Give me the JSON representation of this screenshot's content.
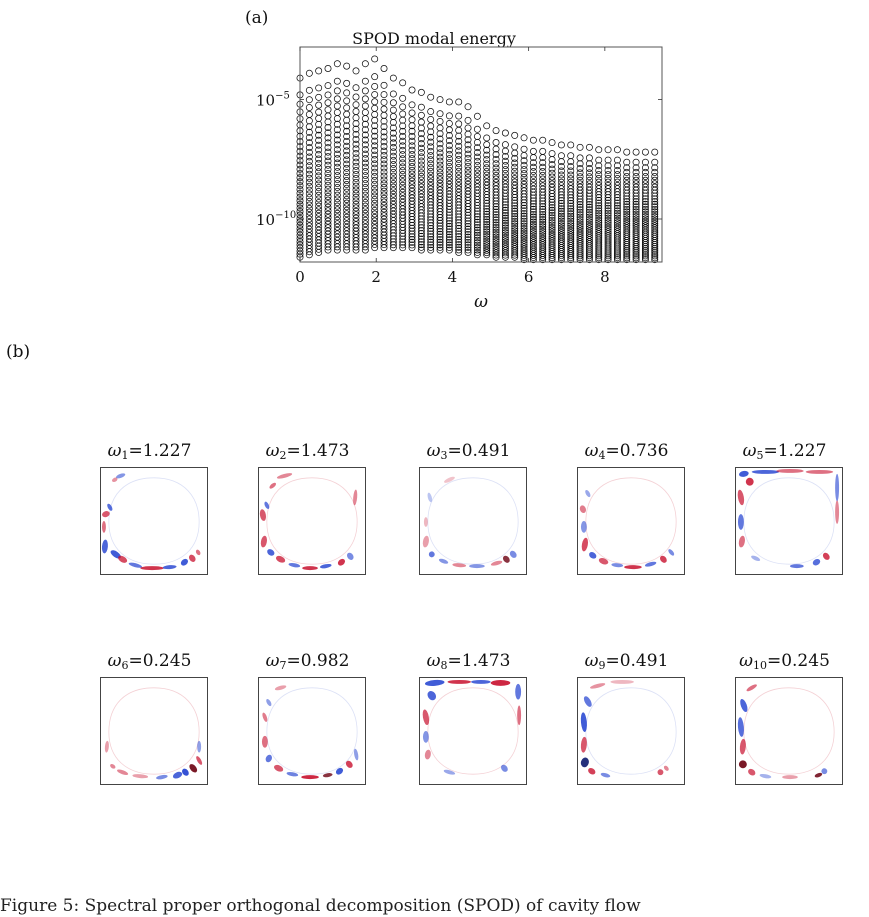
{
  "labels": {
    "a": "(a)",
    "b": "(b)"
  },
  "chart_data": {
    "type": "scatter",
    "title": "SPOD modal energy",
    "xlabel": "ω",
    "ylabel": "",
    "log_y": true,
    "xlim": [
      0,
      9.5
    ],
    "ylim_exponent": [
      -11.8,
      -2.8
    ],
    "xticks": [
      0,
      2,
      4,
      6,
      8
    ],
    "xtick_labels": [
      "0",
      "2",
      "4",
      "6",
      "8"
    ],
    "yticks_exponent": [
      -5,
      -10
    ],
    "ytick_labels": [
      "10",
      "10"
    ],
    "ytick_exponent_labels": [
      "−5",
      "−10"
    ],
    "frequency_step": 0.245,
    "frequency_count": 39,
    "modes_per_frequency": 40,
    "upper_envelope_exponent": [
      -4.1,
      -3.9,
      -3.8,
      -3.7,
      -3.5,
      -3.6,
      -3.8,
      -3.5,
      -3.3,
      -3.7,
      -4.1,
      -4.3,
      -4.6,
      -4.7,
      -4.9,
      -5.0,
      -5.1,
      -5.1,
      -5.3,
      -5.7,
      -6.1,
      -6.3,
      -6.4,
      -6.5,
      -6.6,
      -6.7,
      -6.7,
      -6.8,
      -6.9,
      -6.9,
      -7.0,
      -7.0,
      -7.1,
      -7.1,
      -7.1,
      -7.2,
      -7.2,
      -7.2,
      -7.2
    ],
    "lower_envelope_exponent": [
      -11.6,
      -11.5,
      -11.4,
      -11.3,
      -11.3,
      -11.3,
      -11.3,
      -11.3,
      -11.2,
      -11.2,
      -11.2,
      -11.2,
      -11.2,
      -11.3,
      -11.3,
      -11.3,
      -11.3,
      -11.4,
      -11.4,
      -11.5,
      -11.5,
      -11.6,
      -11.6,
      -11.6,
      -11.7,
      -11.7,
      -11.7,
      -11.7,
      -11.7,
      -11.7,
      -11.7,
      -11.7,
      -11.7,
      -11.7,
      -11.7,
      -11.7,
      -11.7,
      -11.7,
      -11.7
    ]
  },
  "modes": [
    {
      "sub": "1",
      "value": "1.227",
      "pattern": 1
    },
    {
      "sub": "2",
      "value": "1.473",
      "pattern": 2
    },
    {
      "sub": "3",
      "value": "0.491",
      "pattern": 3
    },
    {
      "sub": "4",
      "value": "0.736",
      "pattern": 4
    },
    {
      "sub": "5",
      "value": "1.227",
      "pattern": 5
    },
    {
      "sub": "6",
      "value": "0.245",
      "pattern": 6
    },
    {
      "sub": "7",
      "value": "0.982",
      "pattern": 7
    },
    {
      "sub": "8",
      "value": "1.473",
      "pattern": 8
    },
    {
      "sub": "9",
      "value": "0.491",
      "pattern": 9
    },
    {
      "sub": "10",
      "value": "0.245",
      "pattern": 10
    }
  ],
  "mode_symbol": "ω",
  "caption": "Figure 5:   Spectral proper orthogonal decomposition (SPOD) of cavity flow"
}
